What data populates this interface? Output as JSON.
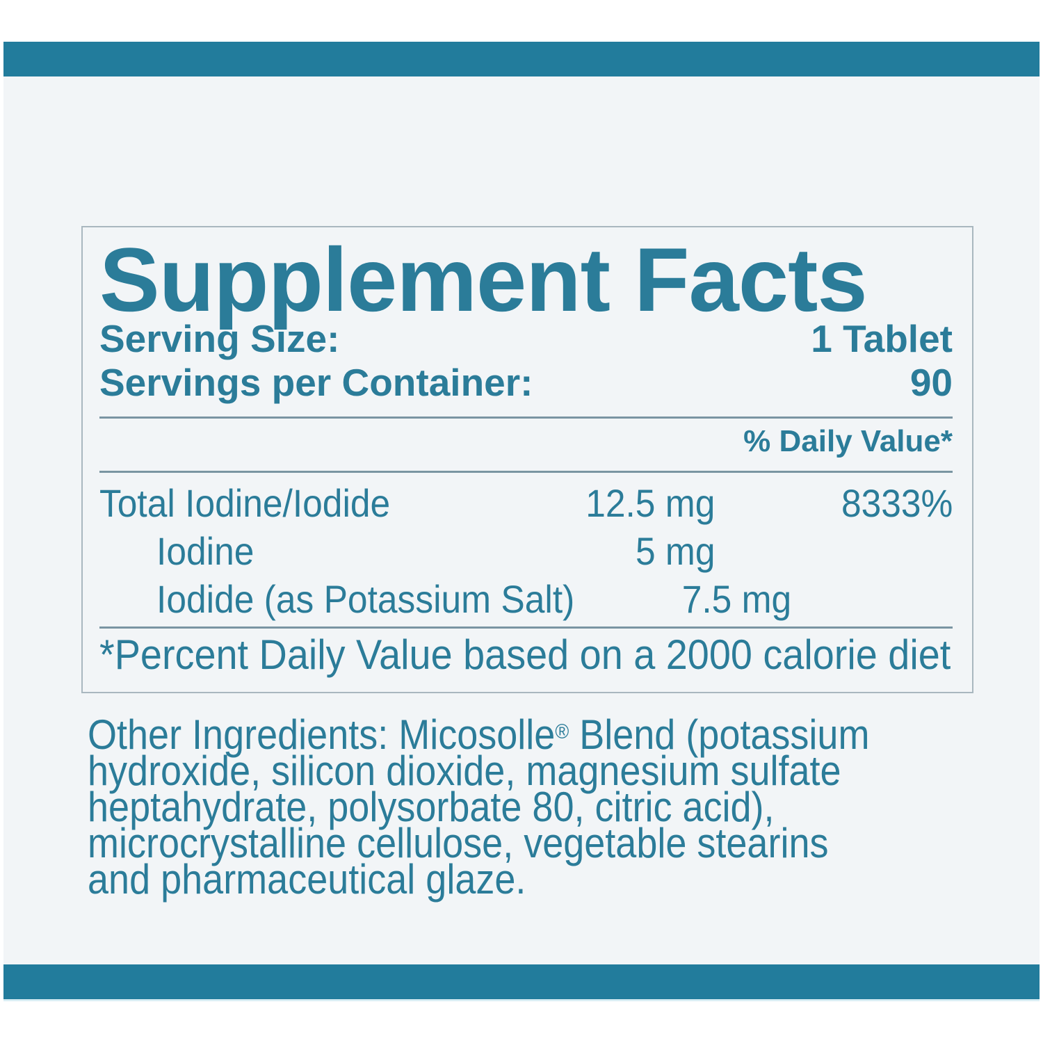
{
  "colors": {
    "teal_bar": "#227c9c",
    "teal_text": "#2b7c99",
    "panel_bg": "#f2f5f7",
    "rule": "#7a95a2",
    "box_border": "#a9b7bf"
  },
  "facts": {
    "title": "Supplement Facts",
    "serving_size_label": "Serving Size:",
    "serving_size_value": "1 Tablet",
    "servings_label": "Servings per Container:",
    "servings_value": "90",
    "dv_header": "% Daily Value*",
    "rows": [
      {
        "name": "Total Iodine/Iodide",
        "amount": "12.5 mg",
        "dv": "8333%",
        "indent": false
      },
      {
        "name": "Iodine",
        "amount": "5 mg",
        "dv": "",
        "indent": true
      },
      {
        "name": "Iodide (as Potassium Salt)",
        "amount": "7.5 mg",
        "dv": "",
        "indent": true
      }
    ],
    "footnote": "*Percent Daily Value based on a 2000 calorie diet"
  },
  "other_ingredients": {
    "line1_pre": "Other Ingredients: Micosolle",
    "reg_mark": "®",
    "line1_post": " Blend (potassium",
    "line2": "hydroxide, silicon dioxide, magnesium sulfate",
    "line3": "heptahydrate, polysorbate 80, citric acid),",
    "line4": "microcrystalline cellulose, vegetable stearins",
    "line5": "and pharmaceutical glaze."
  }
}
